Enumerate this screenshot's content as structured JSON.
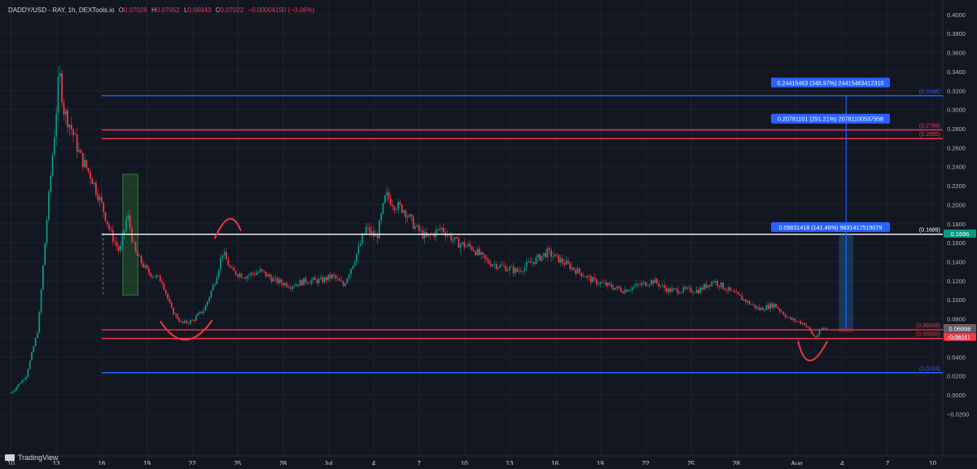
{
  "header": {
    "symbol": "DADDY/USD - RAY, 1h, DEXTools.io",
    "open_label": "O",
    "open": "0.07026",
    "high_label": "H",
    "high": "0.07052",
    "low_label": "L",
    "low": "0.06943",
    "close_label": "C",
    "close": "0.07022",
    "change": "−0.00004150 (−0.06%)"
  },
  "branding": {
    "name": "TradingView"
  },
  "colors": {
    "background": "#131722",
    "up": "#089981",
    "down": "#f23645",
    "blue": "#2962ff",
    "pink": "#f0386b",
    "red": "#f23645",
    "white": "#ffffff",
    "green_box": "#2e7d32"
  },
  "chart_data": {
    "type": "candlestick",
    "ylim": [
      -0.03,
      0.405
    ],
    "y_ticks": [
      "0.4000",
      "0.3800",
      "0.3600",
      "0.3400",
      "0.3200",
      "0.3000",
      "0.2800",
      "0.2600",
      "0.2400",
      "0.2200",
      "0.2000",
      "0.1800",
      "0.1600",
      "0.1400",
      "0.1200",
      "0.1000",
      "0.0800",
      "0.0600",
      "0.0400",
      "0.0200",
      "0.0000",
      "−0.0200"
    ],
    "y_tick_values": [
      0.4,
      0.38,
      0.36,
      0.34,
      0.32,
      0.3,
      0.28,
      0.26,
      0.24,
      0.22,
      0.2,
      0.18,
      0.16,
      0.14,
      0.12,
      0.1,
      0.08,
      0.06,
      0.04,
      0.02,
      0.0,
      -0.02
    ],
    "x_ticks": [
      {
        "label": "10",
        "day": 10
      },
      {
        "label": "13",
        "day": 13
      },
      {
        "label": "16",
        "day": 16
      },
      {
        "label": "19",
        "day": 19
      },
      {
        "label": "22",
        "day": 22
      },
      {
        "label": "25",
        "day": 25
      },
      {
        "label": "28",
        "day": 28
      },
      {
        "label": "Jul",
        "day": 31
      },
      {
        "label": "4",
        "day": 34
      },
      {
        "label": "7",
        "day": 37
      },
      {
        "label": "10",
        "day": 40
      },
      {
        "label": "13",
        "day": 43
      },
      {
        "label": "16",
        "day": 46
      },
      {
        "label": "19",
        "day": 49
      },
      {
        "label": "22",
        "day": 52
      },
      {
        "label": "25",
        "day": 55
      },
      {
        "label": "28",
        "day": 58
      },
      {
        "label": "Aug",
        "day": 62
      },
      {
        "label": "4",
        "day": 65
      },
      {
        "label": "7",
        "day": 68
      },
      {
        "label": "10",
        "day": 71
      }
    ],
    "price_path": [
      [
        10,
        0.002
      ],
      [
        11,
        0.02
      ],
      [
        11.8,
        0.07
      ],
      [
        12.4,
        0.19
      ],
      [
        12.9,
        0.28
      ],
      [
        13.2,
        0.34
      ],
      [
        13.5,
        0.3
      ],
      [
        14,
        0.28
      ],
      [
        14.6,
        0.25
      ],
      [
        15.3,
        0.23
      ],
      [
        16,
        0.2
      ],
      [
        16.6,
        0.17
      ],
      [
        17.2,
        0.15
      ],
      [
        17.7,
        0.19
      ],
      [
        18.2,
        0.15
      ],
      [
        19,
        0.13
      ],
      [
        20,
        0.12
      ],
      [
        20.6,
        0.09
      ],
      [
        21.3,
        0.075
      ],
      [
        22,
        0.078
      ],
      [
        22.8,
        0.09
      ],
      [
        23.5,
        0.12
      ],
      [
        24,
        0.15
      ],
      [
        24.6,
        0.13
      ],
      [
        25.5,
        0.125
      ],
      [
        26.5,
        0.13
      ],
      [
        27.5,
        0.12
      ],
      [
        28.5,
        0.115
      ],
      [
        29.5,
        0.12
      ],
      [
        30.5,
        0.12
      ],
      [
        31.3,
        0.125
      ],
      [
        32,
        0.115
      ],
      [
        32.8,
        0.145
      ],
      [
        33.5,
        0.175
      ],
      [
        34.2,
        0.165
      ],
      [
        34.8,
        0.21
      ],
      [
        35.4,
        0.2
      ],
      [
        36,
        0.195
      ],
      [
        36.8,
        0.175
      ],
      [
        37.5,
        0.165
      ],
      [
        38.5,
        0.175
      ],
      [
        39.5,
        0.16
      ],
      [
        40.5,
        0.155
      ],
      [
        41.5,
        0.14
      ],
      [
        42.5,
        0.135
      ],
      [
        43.5,
        0.13
      ],
      [
        44.5,
        0.14
      ],
      [
        45.5,
        0.15
      ],
      [
        46.5,
        0.14
      ],
      [
        47.5,
        0.13
      ],
      [
        48.5,
        0.12
      ],
      [
        49.5,
        0.115
      ],
      [
        50.5,
        0.11
      ],
      [
        51.5,
        0.115
      ],
      [
        52.5,
        0.12
      ],
      [
        53.5,
        0.11
      ],
      [
        54.5,
        0.11
      ],
      [
        55.5,
        0.11
      ],
      [
        56.5,
        0.12
      ],
      [
        57.5,
        0.11
      ],
      [
        58.5,
        0.1
      ],
      [
        59.5,
        0.09
      ],
      [
        60.5,
        0.095
      ],
      [
        61.5,
        0.08
      ],
      [
        62.5,
        0.075
      ],
      [
        63.2,
        0.06
      ],
      [
        63.7,
        0.07
      ],
      [
        64,
        0.0702
      ]
    ],
    "horizontal_lines": [
      {
        "value": 0.3146,
        "label": "(0.3146)",
        "color": "#2962ff"
      },
      {
        "value": 0.2786,
        "label": "(0.2786)",
        "color": "#f0386b"
      },
      {
        "value": 0.2695,
        "label": "(0.2695)",
        "color": "#f23645"
      },
      {
        "value": 0.1689,
        "label": "(0.1689)",
        "color": "#ffffff"
      },
      {
        "value": 0.06839,
        "label": "(0.06839)",
        "color": "#f23645"
      },
      {
        "value": 0.05935,
        "label": "(0.05935)",
        "color": "#f23645"
      },
      {
        "value": 0.0233,
        "label": "(0.0233)",
        "color": "#2962ff"
      }
    ],
    "price_badges": [
      {
        "value": 0.1696,
        "label": "0.1696",
        "color": "#089981"
      },
      {
        "value": 0.07022,
        "label": "0.07022",
        "color": "#f23645"
      },
      {
        "value": 0.06996,
        "label": "0.06996",
        "color": "#5d606b"
      },
      {
        "value": 0.06111,
        "label": "0.06111",
        "color": "#f23645"
      }
    ],
    "measurement_labels": [
      {
        "value": 0.3285,
        "text": "0.24415463 (348.97%) 24415463412310"
      },
      {
        "value": 0.2905,
        "text": "0.20781101 (291.21%) 20781100537958"
      },
      {
        "value": 0.1765,
        "text": "0.09831418 (141.46%) 9831417519079"
      }
    ],
    "measure_start_day": 65.0,
    "measure_base": 0.06996,
    "measure_top": 0.3146,
    "zone_box": {
      "day_start": 17.4,
      "day_end": 18.4,
      "y_top": 0.232,
      "y_bottom": 0.105
    },
    "dashed_marker_day": 16.1,
    "arcs": [
      {
        "points": [
          [
            23.5,
            0.165
          ],
          [
            24.5,
            0.185
          ],
          [
            25.2,
            0.173
          ]
        ]
      },
      {
        "points": [
          [
            19.9,
            0.077
          ],
          [
            21.5,
            0.058
          ],
          [
            23.3,
            0.078
          ]
        ]
      },
      {
        "points": [
          [
            62.1,
            0.056
          ],
          [
            62.7,
            0.036
          ],
          [
            64.0,
            0.056
          ]
        ]
      }
    ]
  }
}
